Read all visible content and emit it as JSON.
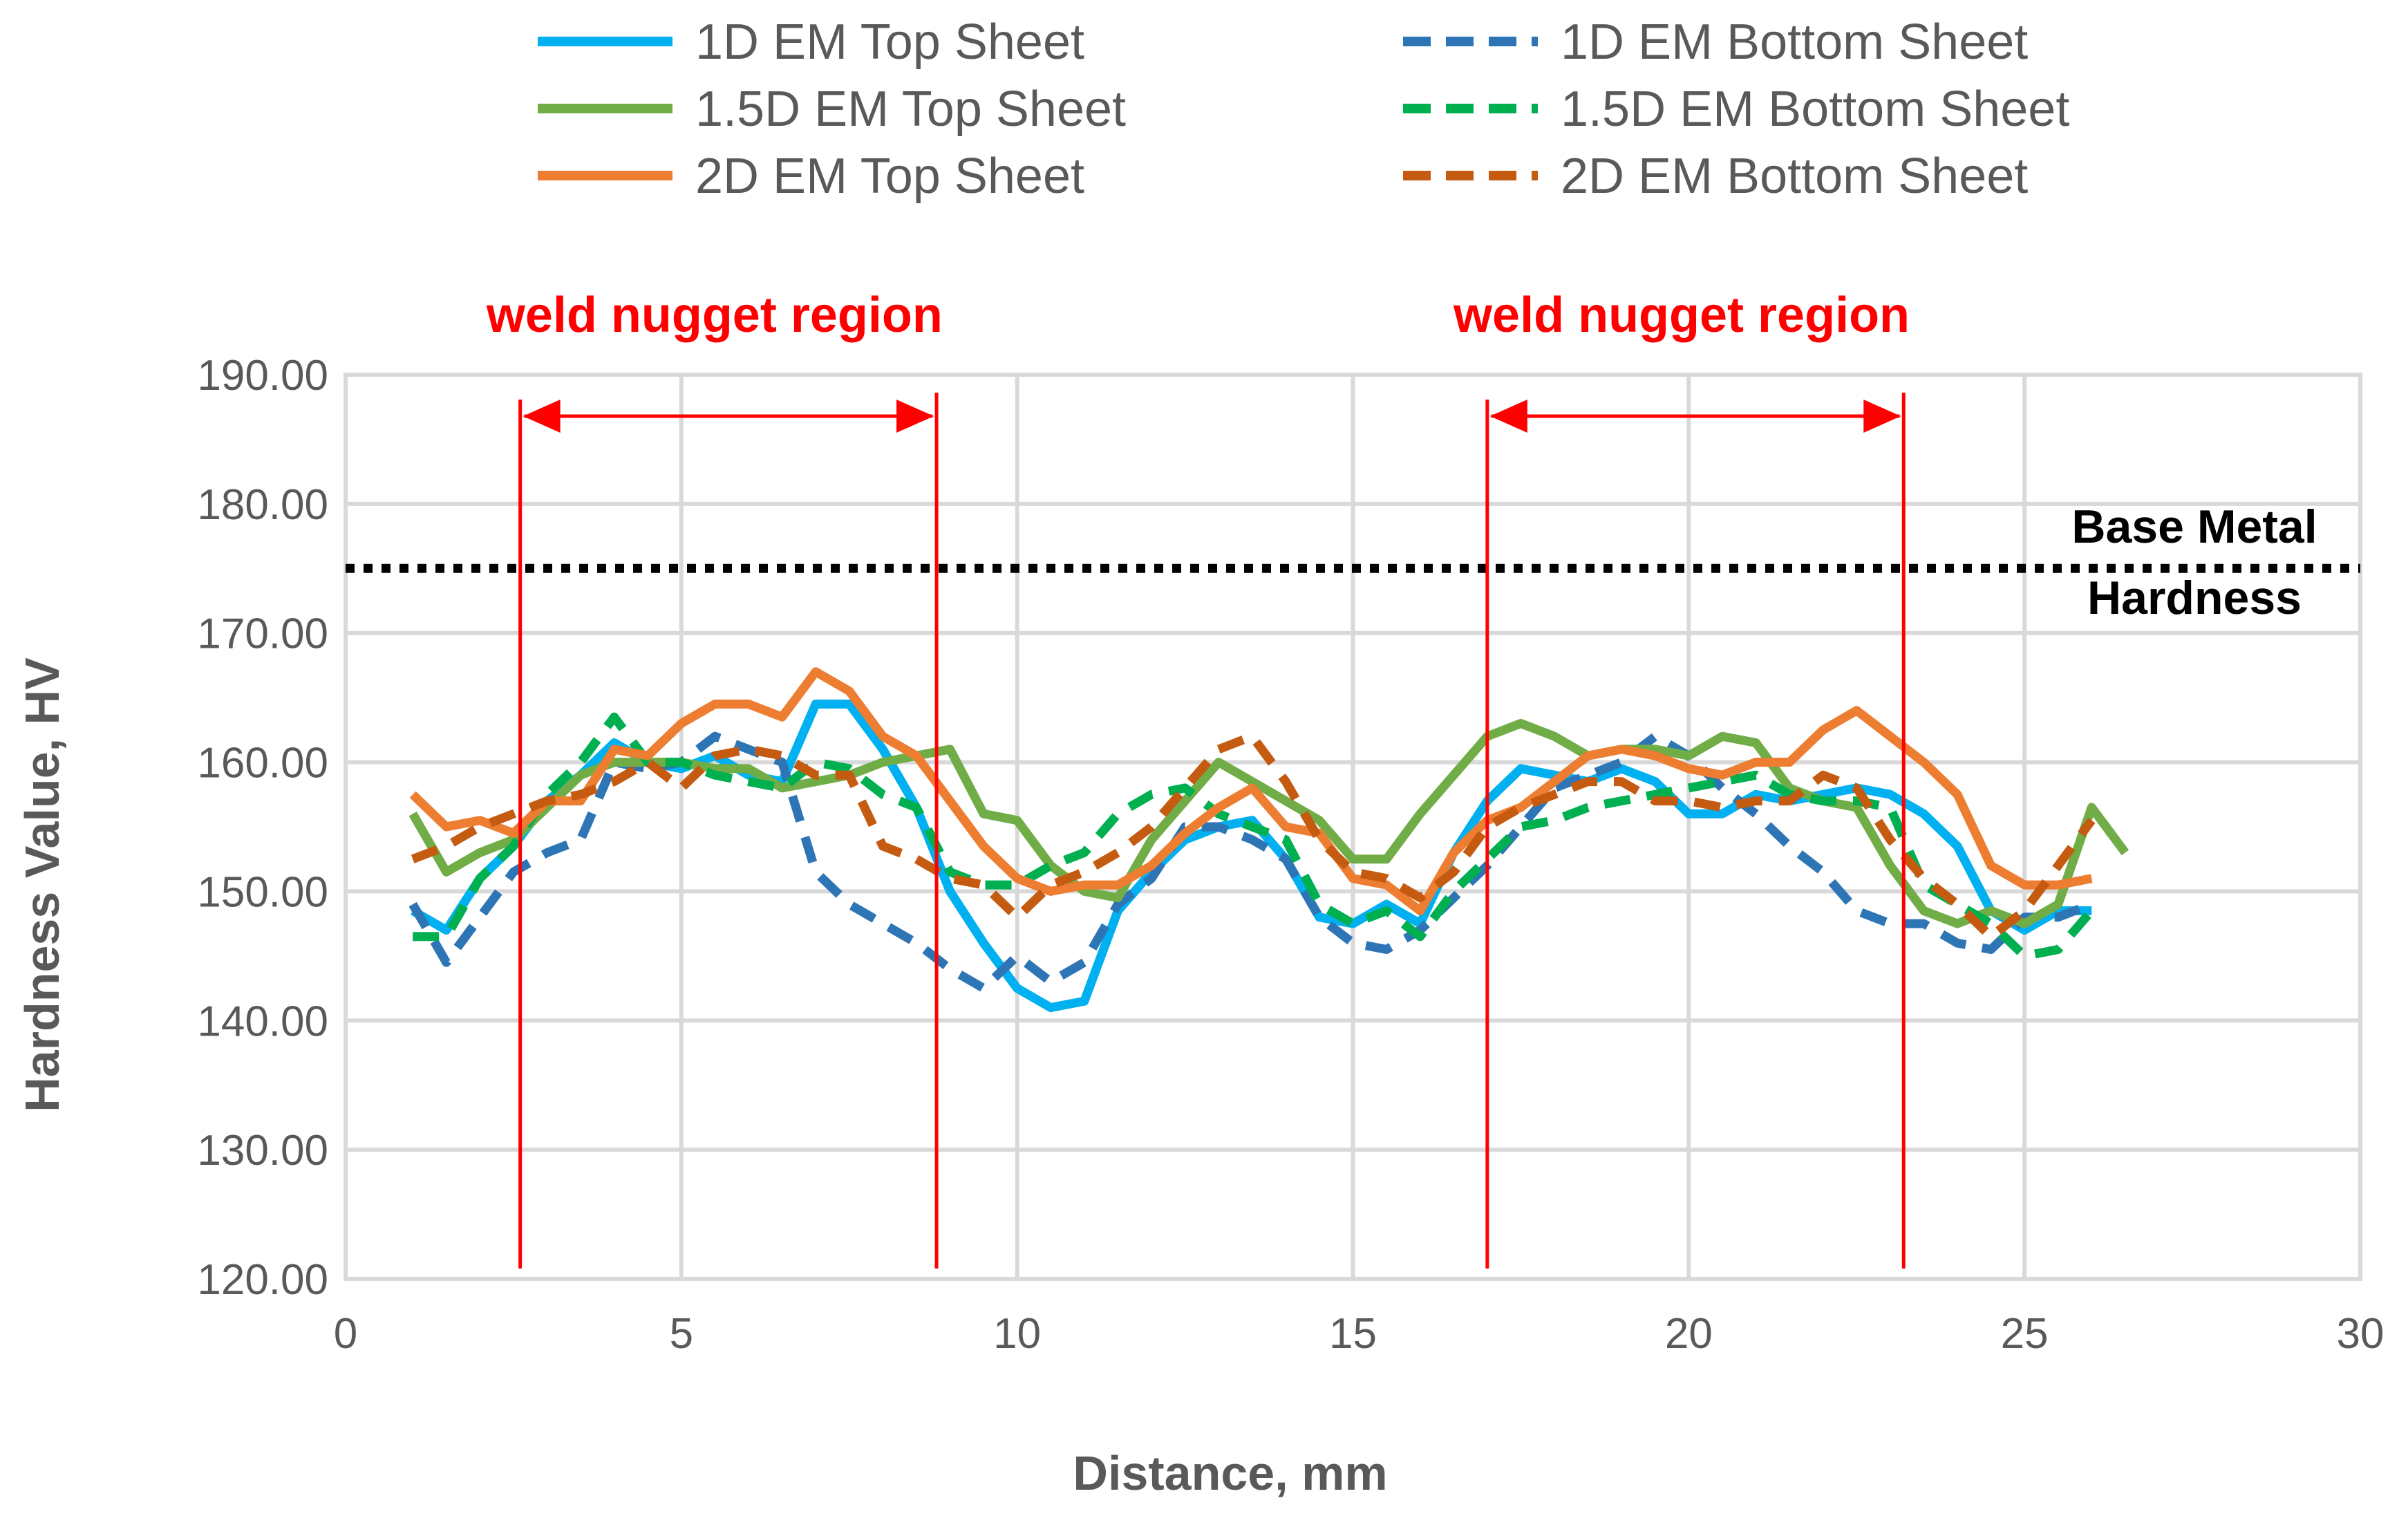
{
  "chart_data": {
    "type": "line",
    "title": "",
    "xlabel": "Distance, mm",
    "ylabel": "Hardness Value, HV",
    "xlim": [
      0,
      30
    ],
    "ylim": [
      120,
      190
    ],
    "xticks": [
      0,
      5,
      10,
      15,
      20,
      25,
      30
    ],
    "xtick_labels": [
      "0",
      "5",
      "10",
      "15",
      "20",
      "25",
      "30"
    ],
    "yticks": [
      120,
      130,
      140,
      150,
      160,
      170,
      180,
      190
    ],
    "ytick_labels": [
      "120.00",
      "130.00",
      "140.00",
      "150.00",
      "160.00",
      "170.00",
      "180.00",
      "190.00"
    ],
    "grid": true,
    "legend_position": "top",
    "series": [
      {
        "name": "1D EM Top Sheet",
        "color": "#00B0F0",
        "dash": "solid",
        "x": [
          1,
          1.5,
          2,
          2.5,
          3,
          3.5,
          4,
          4.5,
          5,
          5.5,
          6,
          6.5,
          7,
          7.5,
          8,
          8.5,
          9,
          9.5,
          10,
          10.5,
          11,
          11.5,
          12,
          12.5,
          13,
          13.5,
          14,
          14.5,
          15,
          15.5,
          16,
          16.5,
          17,
          17.5,
          18,
          18.5,
          19,
          19.5,
          20,
          20.5,
          21,
          21.5,
          22,
          22.5,
          23,
          23.5,
          24,
          24.5,
          25,
          25.5,
          26
        ],
        "y": [
          148.5,
          147,
          151,
          153.5,
          157,
          159,
          161.5,
          160,
          159.5,
          160.5,
          159,
          158.5,
          164.5,
          164.5,
          161,
          156.5,
          150,
          146,
          142.5,
          141,
          141.5,
          148.5,
          151.5,
          154,
          155,
          155.5,
          152.5,
          148,
          147.5,
          149,
          147.5,
          153,
          157,
          159.5,
          159,
          158.5,
          159.5,
          158.5,
          156,
          156,
          157.5,
          157,
          157.5,
          158,
          157.5,
          156,
          153.5,
          148.5,
          147,
          148.5,
          148.5
        ]
      },
      {
        "name": "1D EM Bottom Sheet",
        "color": "#2E75B6",
        "dash": "dashed",
        "x": [
          1,
          1.5,
          2,
          2.5,
          3,
          3.5,
          4,
          4.5,
          5,
          5.5,
          6,
          6.5,
          7,
          7.5,
          8,
          8.5,
          9,
          9.5,
          10,
          10.5,
          11,
          11.5,
          12,
          12.5,
          13,
          13.5,
          14,
          14.5,
          15,
          15.5,
          16,
          16.5,
          17,
          17.5,
          18,
          18.5,
          19,
          19.5,
          20,
          20.5,
          21,
          21.5,
          22,
          22.5,
          23,
          23.5,
          24,
          24.5,
          25,
          25.5,
          26
        ],
        "y": [
          149,
          144.5,
          148,
          151.5,
          153,
          154,
          160,
          159.5,
          160,
          162,
          161,
          160,
          151.5,
          149,
          147.5,
          146,
          144,
          142.5,
          145,
          143,
          144.5,
          149,
          151,
          155,
          155,
          154,
          152.5,
          148,
          146,
          145.5,
          147,
          149.5,
          152,
          155,
          158,
          159,
          160,
          162,
          160.5,
          158,
          156,
          153.5,
          151.5,
          148.5,
          147.5,
          147.5,
          146,
          145.5,
          148,
          148,
          149
        ]
      },
      {
        "name": "1.5D EM Top Sheet",
        "color": "#70AD47",
        "dash": "solid",
        "x": [
          1,
          1.5,
          2,
          2.5,
          3,
          3.5,
          4,
          4.5,
          5,
          5.5,
          6,
          6.5,
          7,
          7.5,
          8,
          8.5,
          9,
          9.5,
          10,
          10.5,
          11,
          11.5,
          12,
          12.5,
          13,
          13.5,
          14,
          14.5,
          15,
          15.5,
          16,
          16.5,
          17,
          17.5,
          18,
          18.5,
          19,
          19.5,
          20,
          20.5,
          21,
          21.5,
          22,
          22.5,
          23,
          23.5,
          24,
          24.5,
          25,
          25.5,
          26,
          26.5
        ],
        "y": [
          156,
          151.5,
          153,
          154,
          156.5,
          159,
          160,
          160,
          160,
          159.5,
          159.5,
          158,
          158.5,
          159,
          160,
          160.5,
          161,
          156,
          155.5,
          152,
          150,
          149.5,
          154,
          157,
          160,
          158.5,
          157,
          155.5,
          152.5,
          152.5,
          156,
          159,
          162,
          163,
          162,
          160.5,
          161,
          161,
          160.5,
          162,
          161.5,
          158,
          157,
          156.5,
          152,
          148.5,
          147.5,
          148.5,
          147.5,
          149,
          156.5,
          153
        ]
      },
      {
        "name": "1.5D EM Bottom Sheet",
        "color": "#00B050",
        "dash": "dashed",
        "x": [
          1,
          1.5,
          2,
          2.5,
          3,
          3.5,
          4,
          4.5,
          5,
          5.5,
          6,
          6.5,
          7,
          7.5,
          8,
          8.5,
          9,
          9.5,
          10,
          10.5,
          11,
          11.5,
          12,
          12.5,
          13,
          13.5,
          14,
          14.5,
          15,
          15.5,
          16,
          16.5,
          17,
          17.5,
          18,
          18.5,
          19,
          19.5,
          20,
          20.5,
          21,
          21.5,
          22,
          22.5,
          23,
          23.5,
          24,
          24.5,
          25,
          25.5,
          26
        ],
        "y": [
          146.5,
          146.5,
          151,
          153.5,
          157.5,
          160,
          163.5,
          160,
          160,
          159,
          158.5,
          158,
          160,
          159.5,
          157.5,
          156.5,
          151.5,
          150.5,
          150.5,
          152,
          153,
          156,
          157.5,
          158,
          156,
          155,
          154,
          149,
          147.5,
          148.5,
          146.5,
          150,
          152.5,
          155,
          155.5,
          156.5,
          157,
          157.5,
          158,
          158.5,
          159,
          157.5,
          157,
          157,
          156.5,
          150.5,
          149,
          147.5,
          145,
          145.5,
          148.5
        ]
      },
      {
        "name": "2D EM Top Sheet",
        "color": "#ED7D31",
        "dash": "solid",
        "x": [
          1,
          1.5,
          2,
          2.5,
          3,
          3.5,
          4,
          4.5,
          5,
          5.5,
          6,
          6.5,
          7,
          7.5,
          8,
          8.5,
          9,
          9.5,
          10,
          10.5,
          11,
          11.5,
          12,
          12.5,
          13,
          13.5,
          14,
          14.5,
          15,
          15.5,
          16,
          16.5,
          17,
          17.5,
          18,
          18.5,
          19,
          19.5,
          20,
          20.5,
          21,
          21.5,
          22,
          22.5,
          23,
          23.5,
          24,
          24.5,
          25,
          25.5,
          26
        ],
        "y": [
          157.5,
          155,
          155.5,
          154.5,
          157,
          157,
          161,
          160.5,
          163,
          164.5,
          164.5,
          163.5,
          167,
          165.5,
          162,
          160.5,
          157,
          153.5,
          151,
          150,
          150.5,
          150.5,
          152,
          154.5,
          156.5,
          158,
          155,
          154.5,
          151,
          150.5,
          148.5,
          153,
          155.5,
          156.5,
          158.5,
          160.5,
          161,
          160.5,
          159.5,
          159,
          160,
          160,
          162.5,
          164,
          162,
          160,
          157.5,
          152,
          150.5,
          150.5,
          151
        ]
      },
      {
        "name": "2D EM Bottom Sheet",
        "color": "#C55A11",
        "dash": "dashed",
        "x": [
          1,
          1.5,
          2,
          2.5,
          3,
          3.5,
          4,
          4.5,
          5,
          5.5,
          6,
          6.5,
          7,
          7.5,
          8,
          8.5,
          9,
          9.5,
          10,
          10.5,
          11,
          11.5,
          12,
          12.5,
          13,
          13.5,
          14,
          14.5,
          15,
          15.5,
          16,
          16.5,
          17,
          17.5,
          18,
          18.5,
          19,
          19.5,
          20,
          20.5,
          21,
          21.5,
          22,
          22.5,
          23,
          23.5,
          24,
          24.5,
          25,
          25.5,
          26
        ],
        "y": [
          152.5,
          153.5,
          155,
          156,
          157,
          157.5,
          158.5,
          160,
          158,
          160.5,
          161,
          160.5,
          159,
          159,
          153.5,
          152.5,
          151,
          150.5,
          148,
          150.5,
          151.5,
          153,
          155,
          158,
          161,
          162,
          158.5,
          154,
          151.5,
          151,
          149.5,
          151.5,
          155,
          156.5,
          157.5,
          158.5,
          158.5,
          157,
          157,
          156.5,
          157,
          157,
          159,
          158,
          154,
          151,
          149,
          146.5,
          148.5,
          152,
          155.5
        ]
      }
    ],
    "reference_line": {
      "label_line1": "Base Metal",
      "label_line2": "Hardness",
      "y": 175,
      "color": "#000000"
    },
    "regions": [
      {
        "label": "weld nugget region",
        "x_start": 2.6,
        "x_end": 8.8,
        "color": "#FF0000"
      },
      {
        "label": "weld nugget region",
        "x_start": 17.0,
        "x_end": 23.2,
        "color": "#FF0000"
      }
    ]
  }
}
